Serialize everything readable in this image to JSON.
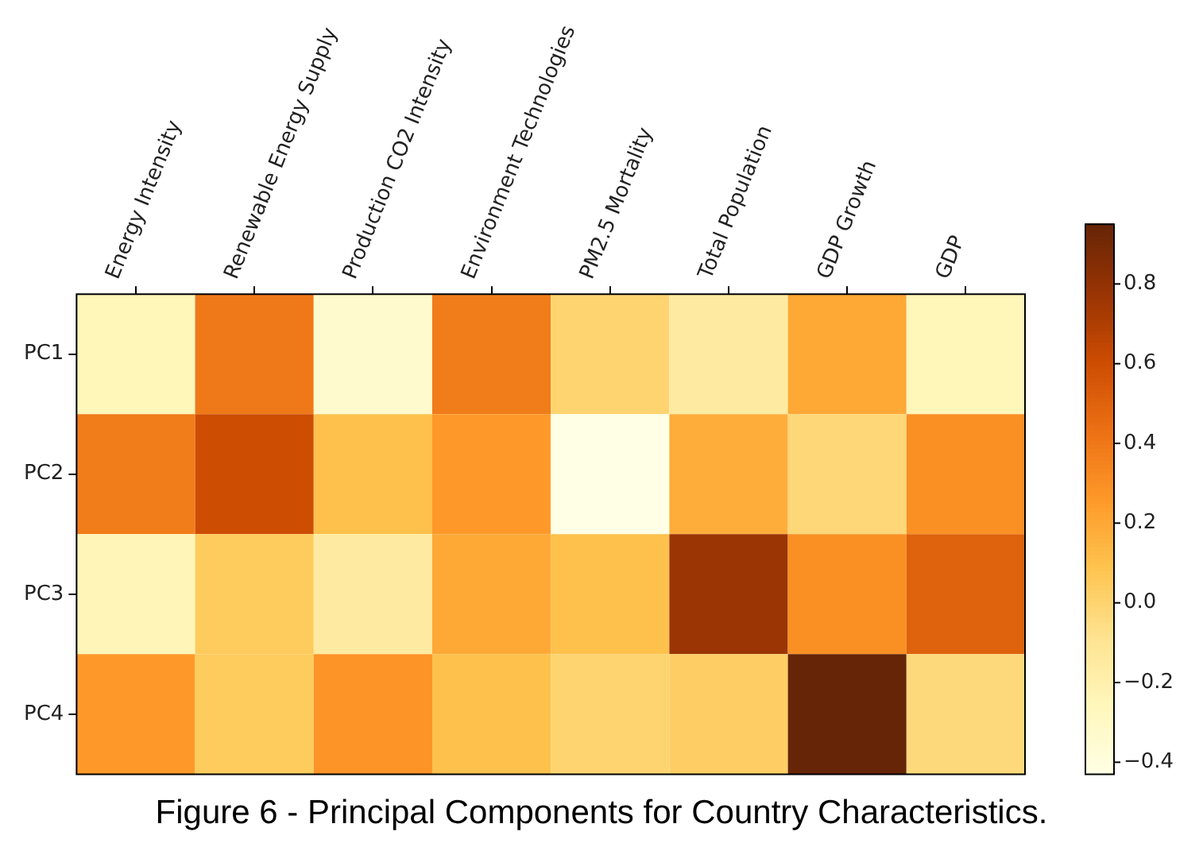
{
  "chart_data": {
    "type": "heatmap",
    "categories": [
      "Energy Intensity",
      "Renewable Energy Supply",
      "Production CO2 Intensity",
      "Environment Technologies",
      "PM2.5 Mortality",
      "Total Population",
      "GDP Growth",
      "GDP"
    ],
    "y_categories": [
      "PC1",
      "PC2",
      "PC3",
      "PC4"
    ],
    "cells": [
      [
        -0.25,
        0.4,
        -0.33,
        0.38,
        0.0,
        -0.15,
        0.2,
        -0.25
      ],
      [
        0.38,
        0.6,
        0.1,
        0.26,
        -0.43,
        0.18,
        -0.02,
        0.3
      ],
      [
        -0.24,
        0.05,
        -0.15,
        0.2,
        0.1,
        0.77,
        0.3,
        0.5
      ],
      [
        0.26,
        0.05,
        0.28,
        0.1,
        0.0,
        0.03,
        0.95,
        -0.03
      ]
    ],
    "clim": [
      -0.43,
      0.95
    ],
    "cticks": [
      {
        "value": -0.4,
        "label": "−0.4"
      },
      {
        "value": -0.2,
        "label": "−0.2"
      },
      {
        "value": 0,
        "label": "0.0"
      },
      0.2,
      0.4,
      0.6,
      0.8
    ],
    "annotations": [
      "Figure 6 - Principal Components for Country Characteristics."
    ]
  }
}
